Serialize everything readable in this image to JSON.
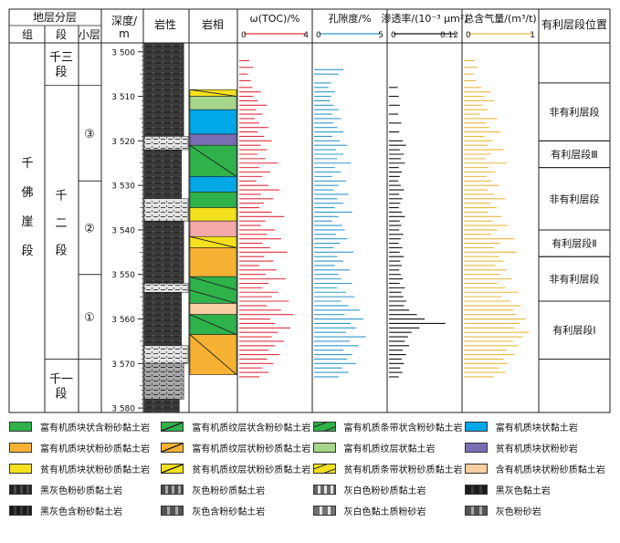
{
  "header": {
    "strat": "地层分层",
    "group": "组",
    "section": "段",
    "layer": "小层",
    "depth": "深度/",
    "depth_unit": "m",
    "lithology": "岩性",
    "facies": "岩相",
    "favorable": "有利层段位置"
  },
  "strata": {
    "group": [
      "千",
      "佛",
      "崖",
      "段"
    ],
    "sections": [
      {
        "lines": [
          "千三",
          "段"
        ],
        "top": 3498,
        "bottom": 3507.5
      },
      {
        "lines": [
          "千",
          "二",
          "段"
        ],
        "top": 3507.5,
        "bottom": 3569
      },
      {
        "lines": [
          "千一",
          "段"
        ],
        "top": 3569,
        "bottom": 3581
      }
    ],
    "layers": [
      {
        "label": "③",
        "top": 3507.5,
        "bottom": 3529
      },
      {
        "label": "②",
        "top": 3529,
        "bottom": 3550
      },
      {
        "label": "①",
        "top": 3550,
        "bottom": 3569
      }
    ]
  },
  "favorable_zones": [
    {
      "label": "非有利层段",
      "top": 3507,
      "bottom": 3520
    },
    {
      "label": "有利层段Ⅲ",
      "top": 3520,
      "bottom": 3526
    },
    {
      "label": "非有利层段",
      "top": 3526,
      "bottom": 3540
    },
    {
      "label": "有利层段Ⅱ",
      "top": 3540,
      "bottom": 3546
    },
    {
      "label": "非有利层段",
      "top": 3546,
      "bottom": 3556
    },
    {
      "label": "有利层段Ⅰ",
      "top": 3556,
      "bottom": 3569
    }
  ],
  "chart_data": {
    "type": "log",
    "depth_range": [
      3498,
      3581
    ],
    "depth_ticks": [
      3500,
      3510,
      3520,
      3530,
      3540,
      3550,
      3560,
      3570,
      3580
    ],
    "depth_tick_labels": [
      "3 500",
      "3 510",
      "3 520",
      "3 530",
      "3 540",
      "3 550",
      "3 560",
      "3 570",
      "3 580"
    ],
    "curves": [
      {
        "name": "ω(TOC)/%",
        "min": 0,
        "max": 4,
        "min_label": "0",
        "max_label": "4",
        "color": "#e03040",
        "depths": [
          3502,
          3503.5,
          3505,
          3506.5,
          3508,
          3509,
          3510,
          3511,
          3512,
          3513,
          3514,
          3515,
          3516,
          3517,
          3518,
          3519,
          3520,
          3521,
          3522,
          3523,
          3524,
          3525,
          3526,
          3527,
          3528,
          3529,
          3530,
          3531,
          3532,
          3533,
          3534,
          3535,
          3536,
          3537,
          3538,
          3539,
          3540,
          3541,
          3542,
          3543,
          3544,
          3545,
          3546,
          3547,
          3548,
          3549,
          3550,
          3551,
          3552,
          3553,
          3554,
          3555,
          3556,
          3557,
          3558,
          3559,
          3560,
          3561,
          3562,
          3563,
          3564,
          3565,
          3566,
          3567,
          3568,
          3569,
          3570,
          3571,
          3572,
          3573
        ],
        "values": [
          0.35,
          0.6,
          0.25,
          0.45,
          0.55,
          1.1,
          0.6,
          0.9,
          1.5,
          0.8,
          1.2,
          0.7,
          1.0,
          1.6,
          0.9,
          1.3,
          1.8,
          1.1,
          1.5,
          0.9,
          1.4,
          2.2,
          1.0,
          1.7,
          1.2,
          0.8,
          1.6,
          2.3,
          1.1,
          1.9,
          1.3,
          1.0,
          1.8,
          2.6,
          1.4,
          1.1,
          2.0,
          1.5,
          2.4,
          1.2,
          1.7,
          2.8,
          1.3,
          1.9,
          1.0,
          2.1,
          1.4,
          2.7,
          1.6,
          1.2,
          2.2,
          1.8,
          2.9,
          1.5,
          2.4,
          3.2,
          1.7,
          2.0,
          3.0,
          2.2,
          1.8,
          2.6,
          2.0,
          1.6,
          2.3,
          1.5,
          1.9,
          1.2,
          1.6,
          1.0
        ]
      },
      {
        "name": "孔隙度/%",
        "min": 0,
        "max": 5,
        "min_label": "0",
        "max_label": "5",
        "color": "#3399cc",
        "depths": [
          3504,
          3505,
          3507,
          3508,
          3509,
          3510,
          3511,
          3512,
          3513,
          3514,
          3515,
          3516,
          3517,
          3518,
          3519,
          3520,
          3521,
          3522,
          3523,
          3524,
          3525,
          3526,
          3527,
          3528,
          3529,
          3530,
          3531,
          3532,
          3533,
          3534,
          3535,
          3536,
          3537,
          3538,
          3539,
          3540,
          3541,
          3542,
          3543,
          3544,
          3545,
          3546,
          3547,
          3548,
          3549,
          3550,
          3551,
          3552,
          3553,
          3554,
          3555,
          3556,
          3557,
          3558,
          3559,
          3560,
          3561,
          3562,
          3563,
          3564,
          3565,
          3566,
          3567,
          3568,
          3569,
          3570,
          3571,
          3572,
          3573
        ],
        "values": [
          2.0,
          1.6,
          1.0,
          0.8,
          1.3,
          1.0,
          0.9,
          1.2,
          1.6,
          1.1,
          1.8,
          1.2,
          1.5,
          2.0,
          1.1,
          1.7,
          2.3,
          1.4,
          2.0,
          1.5,
          2.6,
          1.3,
          1.8,
          1.1,
          2.2,
          1.6,
          1.2,
          2.4,
          1.5,
          2.0,
          1.3,
          2.7,
          1.6,
          1.1,
          1.9,
          2.1,
          1.4,
          2.3,
          1.7,
          1.2,
          2.8,
          1.5,
          2.0,
          1.3,
          2.5,
          1.6,
          1.8,
          2.7,
          1.5,
          2.2,
          2.9,
          1.8,
          2.4,
          3.3,
          2.1,
          3.6,
          2.6,
          3.0,
          2.2,
          3.8,
          2.5,
          3.2,
          2.0,
          2.7,
          2.3,
          3.0,
          1.9,
          2.4,
          1.6
        ]
      },
      {
        "name": "渗透率/(10⁻³ μm²)",
        "min": 0,
        "max": 0.12,
        "min_label": "0",
        "max_label": "0.12",
        "color": "#111111",
        "depths": [
          3508,
          3510,
          3512,
          3514,
          3516,
          3518,
          3520,
          3521,
          3522,
          3523,
          3524,
          3525,
          3526,
          3527,
          3528,
          3529,
          3530,
          3531,
          3532,
          3533,
          3534,
          3535,
          3536,
          3537,
          3538,
          3539,
          3540,
          3541,
          3542,
          3543,
          3544,
          3545,
          3546,
          3547,
          3548,
          3549,
          3550,
          3551,
          3552,
          3553,
          3554,
          3555,
          3556,
          3557,
          3558,
          3559,
          3560,
          3561,
          3562,
          3563,
          3564,
          3565,
          3566,
          3567,
          3568,
          3569,
          3570,
          3571,
          3572,
          3573
        ],
        "values": [
          0.008,
          0.01,
          0.012,
          0.009,
          0.015,
          0.011,
          0.018,
          0.024,
          0.012,
          0.02,
          0.014,
          0.022,
          0.01,
          0.016,
          0.012,
          0.009,
          0.014,
          0.02,
          0.011,
          0.017,
          0.013,
          0.01,
          0.016,
          0.022,
          0.012,
          0.015,
          0.011,
          0.019,
          0.014,
          0.01,
          0.017,
          0.012,
          0.02,
          0.013,
          0.016,
          0.011,
          0.014,
          0.018,
          0.012,
          0.022,
          0.015,
          0.019,
          0.025,
          0.02,
          0.03,
          0.045,
          0.06,
          0.1,
          0.05,
          0.035,
          0.028,
          0.022,
          0.03,
          0.018,
          0.024,
          0.016,
          0.02,
          0.013,
          0.017,
          0.01
        ]
      },
      {
        "name": "总含气量/(m³/t)",
        "min": 0,
        "max": 1,
        "min_label": "0",
        "max_label": "1",
        "color": "#e8b840",
        "depths": [
          3502,
          3503.5,
          3505,
          3506.5,
          3508,
          3509,
          3510,
          3511,
          3512,
          3513,
          3514,
          3515,
          3516,
          3517,
          3518,
          3519,
          3520,
          3521,
          3522,
          3523,
          3524,
          3525,
          3526,
          3527,
          3528,
          3529,
          3530,
          3531,
          3532,
          3533,
          3534,
          3535,
          3536,
          3537,
          3538,
          3539,
          3540,
          3541,
          3542,
          3543,
          3544,
          3545,
          3546,
          3547,
          3548,
          3549,
          3550,
          3551,
          3552,
          3553,
          3554,
          3555,
          3556,
          3557,
          3558,
          3559,
          3560,
          3561,
          3562,
          3563,
          3564,
          3565,
          3566,
          3567,
          3568,
          3569,
          3570,
          3571,
          3572,
          3573
        ],
        "values": [
          0.1,
          0.15,
          0.08,
          0.12,
          0.2,
          0.35,
          0.25,
          0.4,
          0.22,
          0.3,
          0.18,
          0.45,
          0.28,
          0.33,
          0.5,
          0.25,
          0.38,
          0.3,
          0.55,
          0.35,
          0.27,
          0.6,
          0.32,
          0.42,
          0.28,
          0.36,
          0.48,
          0.3,
          0.4,
          0.58,
          0.34,
          0.44,
          0.3,
          0.52,
          0.38,
          0.62,
          0.45,
          0.35,
          0.72,
          0.5,
          0.4,
          0.75,
          0.48,
          0.55,
          0.42,
          0.6,
          0.5,
          0.68,
          0.45,
          0.58,
          0.78,
          0.52,
          0.66,
          0.82,
          0.7,
          0.75,
          0.9,
          0.8,
          0.72,
          0.95,
          0.85,
          0.7,
          0.78,
          0.6,
          0.72,
          0.55,
          0.62,
          0.48,
          0.58,
          0.4
        ]
      }
    ]
  },
  "lithology": {
    "intervals": [
      {
        "top": 3498,
        "bottom": 3519,
        "pattern": "black-gray",
        "w": 0.9
      },
      {
        "top": 3519,
        "bottom": 3522,
        "pattern": "gray-white-silt",
        "w": 1.0
      },
      {
        "top": 3522,
        "bottom": 3533,
        "pattern": "black-gray",
        "w": 0.85
      },
      {
        "top": 3533,
        "bottom": 3538,
        "pattern": "gray-white-silt",
        "w": 1.0
      },
      {
        "top": 3538,
        "bottom": 3552,
        "pattern": "black-gray",
        "w": 0.9
      },
      {
        "top": 3552,
        "bottom": 3554,
        "pattern": "gray-white-silt",
        "w": 1.0
      },
      {
        "top": 3554,
        "bottom": 3566,
        "pattern": "black-gray",
        "w": 0.85
      },
      {
        "top": 3566,
        "bottom": 3570,
        "pattern": "gray-white-silt",
        "w": 1.0
      },
      {
        "top": 3570,
        "bottom": 3578,
        "pattern": "gray-silt",
        "w": 0.9
      },
      {
        "top": 3578,
        "bottom": 3581,
        "pattern": "black-gray",
        "w": 0.8
      }
    ]
  },
  "facies": {
    "intervals": [
      {
        "top": 3508.5,
        "bottom": 3510,
        "color": "#f5e11e",
        "marker": "slash"
      },
      {
        "top": 3510,
        "bottom": 3513,
        "color": "#a6d68a",
        "marker": "none"
      },
      {
        "top": 3513,
        "bottom": 3518.5,
        "color": "#00a8e8",
        "marker": "none"
      },
      {
        "top": 3518.5,
        "bottom": 3521,
        "color": "#7b6db4",
        "marker": "none"
      },
      {
        "top": 3521,
        "bottom": 3528,
        "color": "#2fb24a",
        "marker": "slash"
      },
      {
        "top": 3528,
        "bottom": 3531.5,
        "color": "#00a8e8",
        "marker": "none"
      },
      {
        "top": 3531.5,
        "bottom": 3535,
        "color": "#2fb24a",
        "marker": "none"
      },
      {
        "top": 3535,
        "bottom": 3538,
        "color": "#f5e11e",
        "marker": "none"
      },
      {
        "top": 3538,
        "bottom": 3541.5,
        "color": "#f4a9a8",
        "marker": "none"
      },
      {
        "top": 3541.5,
        "bottom": 3544,
        "color": "#f5e11e",
        "marker": "slash"
      },
      {
        "top": 3544,
        "bottom": 3550.5,
        "color": "#f7b234",
        "marker": "none"
      },
      {
        "top": 3550.5,
        "bottom": 3556.5,
        "color": "#2fb24a",
        "marker": "band"
      },
      {
        "top": 3556.5,
        "bottom": 3559,
        "color": "#f7cfa2",
        "marker": "none"
      },
      {
        "top": 3559,
        "bottom": 3563.5,
        "color": "#2fb24a",
        "marker": "slash"
      },
      {
        "top": 3563.5,
        "bottom": 3572.5,
        "color": "#f7b234",
        "marker": "slash"
      }
    ]
  },
  "legend": [
    {
      "label": "富有机质块状含粉砂黏土岩",
      "color": "#2fb24a",
      "marker": "none"
    },
    {
      "label": "富有机质纹层状含粉砂黏土岩",
      "color": "#2fb24a",
      "marker": "slash"
    },
    {
      "label": "富有机质条带状含粉砂黏土岩",
      "color": "#2fb24a",
      "marker": "band"
    },
    {
      "label": "富有机质块状黏土岩",
      "color": "#00a8e8",
      "marker": "none"
    },
    {
      "label": "富有机质块状粉砂质黏土岩",
      "color": "#f7b234",
      "marker": "none"
    },
    {
      "label": "富有机质纹层状粉砂质黏土岩",
      "color": "#f7b234",
      "marker": "slash"
    },
    {
      "label": "富有机质纹层状黏土岩",
      "color": "#a6d68a",
      "marker": "none"
    },
    {
      "label": "贫有机质块状粉砂岩",
      "color": "#7b6db4",
      "marker": "none"
    },
    {
      "label": "贫有机质块状粉砂质黏土岩",
      "color": "#f5e11e",
      "marker": "none"
    },
    {
      "label": "贫有机质纹层状粉砂质黏土岩",
      "color": "#f5e11e",
      "marker": "slash"
    },
    {
      "label": "贫有机质条带状粉砂质黏土岩",
      "color": "#f5e11e",
      "marker": "band"
    },
    {
      "label": "含有机质块状粉砂质黏土岩",
      "color": "#f7cfa2",
      "marker": "none"
    },
    {
      "label": "黑灰色粉砂质黏土岩",
      "color": "#4a4a4a",
      "marker": "lith-dots"
    },
    {
      "label": "灰色粉砂质黏土岩",
      "color": "#a8a8a8",
      "marker": "lith-dots"
    },
    {
      "label": "灰白色粉砂质黏土岩",
      "color": "#e2e2e2",
      "marker": "lith-dots"
    },
    {
      "label": "黑灰色黏土岩",
      "color": "#3a3a3a",
      "marker": "lith-dash"
    },
    {
      "label": "黑灰色含粉砂黏土岩",
      "color": "#3a3a3a",
      "marker": "lith-dots"
    },
    {
      "label": "灰色含粉砂黏土岩",
      "color": "#a8a8a8",
      "marker": "lith-dash"
    },
    {
      "label": "灰白色黏土质粉砂岩",
      "color": "#e2e2e2",
      "marker": "lith-dash"
    },
    {
      "label": "灰色粉砂岩",
      "color": "#a8a8a8",
      "marker": "lith-dash"
    }
  ]
}
